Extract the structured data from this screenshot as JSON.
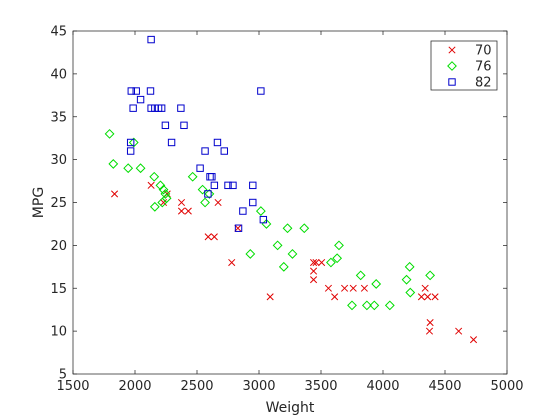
{
  "chart_data": {
    "type": "scatter",
    "title": "",
    "xlabel": "Weight",
    "ylabel": "MPG",
    "xlim": [
      1500,
      5000
    ],
    "ylim": [
      5,
      45
    ],
    "xticks": [
      1500,
      2000,
      2500,
      3000,
      3500,
      4000,
      4500,
      5000
    ],
    "yticks": [
      5,
      10,
      15,
      20,
      25,
      30,
      35,
      40,
      45
    ],
    "grid": false,
    "legend_position": "top-right",
    "series": [
      {
        "name": "70",
        "marker": "x",
        "color": "#e00000",
        "points": [
          [
            1835,
            26
          ],
          [
            2130,
            27
          ],
          [
            2230,
            25
          ],
          [
            2260,
            26
          ],
          [
            2375,
            25
          ],
          [
            2375,
            24
          ],
          [
            2430,
            24
          ],
          [
            2590,
            21
          ],
          [
            2640,
            21
          ],
          [
            2670,
            25
          ],
          [
            2780,
            18
          ],
          [
            2830,
            22
          ],
          [
            3090,
            14
          ],
          [
            3440,
            16
          ],
          [
            3440,
            17
          ],
          [
            3440,
            18
          ],
          [
            3460,
            18
          ],
          [
            3505,
            18
          ],
          [
            3560,
            15
          ],
          [
            3610,
            14
          ],
          [
            3690,
            15
          ],
          [
            3760,
            15
          ],
          [
            3850,
            15
          ],
          [
            4310,
            14
          ],
          [
            4340,
            15
          ],
          [
            4360,
            14
          ],
          [
            4375,
            10
          ],
          [
            4380,
            11
          ],
          [
            4420,
            14
          ],
          [
            4610,
            10
          ],
          [
            4730,
            9
          ]
        ]
      },
      {
        "name": "76",
        "marker": "o",
        "color": "#00dd00",
        "points": [
          [
            1795,
            33
          ],
          [
            1825,
            29.5
          ],
          [
            1945,
            29
          ],
          [
            1990,
            32
          ],
          [
            2045,
            29
          ],
          [
            2155,
            28
          ],
          [
            2160,
            24.5
          ],
          [
            2205,
            27
          ],
          [
            2220,
            25
          ],
          [
            2230,
            26.5
          ],
          [
            2245,
            26
          ],
          [
            2255,
            25.5
          ],
          [
            2465,
            28
          ],
          [
            2545,
            26.5
          ],
          [
            2565,
            25
          ],
          [
            2600,
            26
          ],
          [
            2930,
            19
          ],
          [
            3015,
            24
          ],
          [
            3060,
            22.5
          ],
          [
            3150,
            20
          ],
          [
            3200,
            17.5
          ],
          [
            3230,
            22
          ],
          [
            3270,
            19
          ],
          [
            3365,
            22
          ],
          [
            3580,
            18
          ],
          [
            3630,
            18.5
          ],
          [
            3645,
            20
          ],
          [
            3750,
            13
          ],
          [
            3820,
            16.5
          ],
          [
            3870,
            13
          ],
          [
            3930,
            13
          ],
          [
            3945,
            15.5
          ],
          [
            4055,
            13
          ],
          [
            4190,
            16
          ],
          [
            4215,
            17.5
          ],
          [
            4220,
            14.5
          ],
          [
            4380,
            16.5
          ]
        ]
      },
      {
        "name": "82",
        "marker": "square",
        "color": "#0000cc",
        "points": [
          [
            1965,
            32
          ],
          [
            1965,
            31
          ],
          [
            1970,
            38
          ],
          [
            1985,
            36
          ],
          [
            2010,
            38
          ],
          [
            2045,
            37
          ],
          [
            2125,
            38
          ],
          [
            2130,
            44
          ],
          [
            2130,
            36
          ],
          [
            2160,
            36
          ],
          [
            2190,
            36
          ],
          [
            2215,
            36
          ],
          [
            2245,
            34
          ],
          [
            2295,
            32
          ],
          [
            2370,
            36
          ],
          [
            2395,
            34
          ],
          [
            2525,
            29
          ],
          [
            2565,
            31
          ],
          [
            2605,
            28
          ],
          [
            2620,
            28
          ],
          [
            2640,
            27
          ],
          [
            2665,
            32
          ],
          [
            2720,
            31
          ],
          [
            2750,
            27
          ],
          [
            2790,
            27
          ],
          [
            2835,
            22
          ],
          [
            2870,
            24
          ],
          [
            2950,
            27
          ],
          [
            2950,
            25
          ],
          [
            3015,
            38
          ],
          [
            3035,
            23
          ],
          [
            2588,
            26
          ]
        ]
      }
    ]
  }
}
